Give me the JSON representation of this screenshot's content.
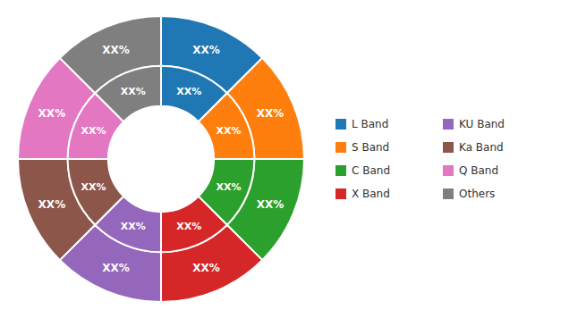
{
  "chart_data": {
    "type": "pie",
    "categories": [
      "L Band",
      "S Band",
      "C Band",
      "X Band",
      "KU Band",
      "Ka Band",
      "Q Band",
      "Others"
    ],
    "series": [
      {
        "values": [
          12.5,
          12.5,
          12.5,
          12.5,
          12.5,
          12.5,
          12.5,
          12.5
        ],
        "value_labels": [
          "XX%",
          "XX%",
          "XX%",
          "XX%",
          "XX%",
          "XX%",
          "XX%",
          "XX%"
        ]
      },
      {
        "values": [
          12.5,
          12.5,
          12.5,
          12.5,
          12.5,
          12.5,
          12.5,
          12.5
        ],
        "value_labels": [
          "XX%",
          "XX%",
          "XX%",
          "XX%",
          "XX%",
          "XX%",
          "XX%",
          "XX%"
        ]
      }
    ],
    "data_labels": true,
    "legend": "right"
  }
}
